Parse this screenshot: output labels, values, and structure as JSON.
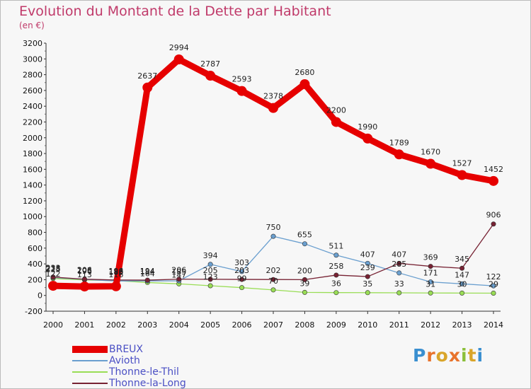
{
  "title": "Evolution du Montant de la Dette par Habitant",
  "subtitle": "(en €)",
  "logo": {
    "text": "Proxiti",
    "colors": [
      "#3a8fd0",
      "#e8732c",
      "#d9a52a",
      "#e8732c",
      "#8bbf3a",
      "#d9a52a",
      "#3a8fd0"
    ]
  },
  "chart_data": {
    "type": "line",
    "title": "Evolution du Montant de la Dette par Habitant",
    "subtitle": "(en €)",
    "xlabel": "",
    "ylabel": "",
    "x": [
      "2000",
      "2001",
      "2002",
      "2003",
      "2004",
      "2005",
      "2006",
      "2007",
      "2008",
      "2009",
      "2010",
      "2011",
      "2012",
      "2013",
      "2014"
    ],
    "ylim": [
      -200,
      3200
    ],
    "yticks": [
      "-200",
      "0",
      "200",
      "400",
      "600",
      "800",
      "1000",
      "1200",
      "1400",
      "1600",
      "1800",
      "2000",
      "2200",
      "2400",
      "2600",
      "2800",
      "3000",
      "3200"
    ],
    "grid": false,
    "legend_position": "bottom-left",
    "series": [
      {
        "name": "BREUX",
        "color": "#e60000",
        "values": [
          122,
          113,
          116,
          2637,
          2994,
          2787,
          2593,
          2378,
          2680,
          2200,
          1990,
          1789,
          1670,
          1527,
          1452
        ],
        "labels": [
          "122",
          "113",
          "116",
          "2637",
          "2994",
          "2787",
          "2593",
          "2378",
          "2680",
          "2200",
          "1990",
          "1789",
          "1670",
          "1527",
          "1452"
        ]
      },
      {
        "name": "Avioth",
        "color": "#6a9fcf",
        "values": [
          228,
          203,
          183,
          184,
          185,
          394,
          303,
          750,
          655,
          511,
          407,
          285,
          171,
          147,
          122
        ],
        "labels": [
          "228",
          "203",
          "183",
          "184",
          "185",
          "394",
          "303",
          "750",
          "655",
          "511",
          "407",
          "285",
          "171",
          "147",
          "122"
        ]
      },
      {
        "name": "Thonne-le-Thil",
        "color": "#99dd55",
        "values": [
          215,
          196,
          188,
          164,
          147,
          123,
          99,
          70,
          39,
          36,
          35,
          33,
          31,
          30,
          29
        ],
        "labels": [
          "215",
          "196",
          "188",
          "164",
          "147",
          "123",
          "99",
          "70",
          "39",
          "36",
          "35",
          "33",
          "31",
          "30",
          "29"
        ]
      },
      {
        "name": "Thonne-la-Long",
        "color": "#772233",
        "values": [
          233,
          206,
          196,
          194,
          206,
          205,
          203,
          202,
          200,
          258,
          239,
          407,
          369,
          345,
          906
        ],
        "labels": [
          "233",
          "206",
          "196",
          "194",
          "206",
          "205",
          "203",
          "202",
          "200",
          "258",
          "239",
          "407",
          "369",
          "345",
          "906"
        ]
      }
    ]
  }
}
